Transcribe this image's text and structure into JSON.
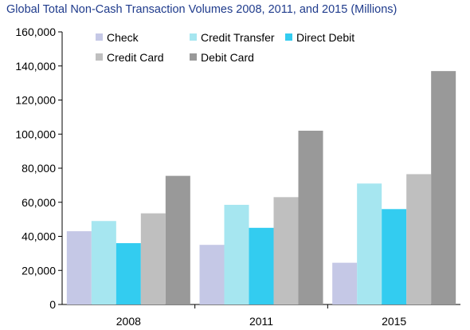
{
  "chart_data": {
    "type": "bar",
    "title": "Global Total Non-Cash Transaction Volumes 2008, 2011, and 2015 (Millions)",
    "categories": [
      "2008",
      "2011",
      "2015"
    ],
    "series": [
      {
        "name": "Check",
        "color": "#c5c8e6",
        "values": [
          43000,
          35000,
          24500
        ]
      },
      {
        "name": "Credit Transfer",
        "color": "#a6e6f0",
        "values": [
          49000,
          58500,
          71000
        ]
      },
      {
        "name": "Direct Debit",
        "color": "#33ccf0",
        "values": [
          36000,
          45000,
          56000
        ]
      },
      {
        "name": "Credit Card",
        "color": "#bfbfbf",
        "values": [
          53500,
          63000,
          76500
        ]
      },
      {
        "name": "Debit Card",
        "color": "#999999",
        "values": [
          75500,
          102000,
          137000
        ]
      }
    ],
    "ylim": [
      0,
      160000
    ],
    "yticks": [
      0,
      20000,
      40000,
      60000,
      80000,
      100000,
      120000,
      140000,
      160000
    ],
    "ytick_labels": [
      "0",
      "20,000",
      "40,000",
      "60,000",
      "80,000",
      "100,000",
      "120,000",
      "140,000",
      "160,000"
    ],
    "legend_position": "top-left inside plot",
    "grid": false
  }
}
